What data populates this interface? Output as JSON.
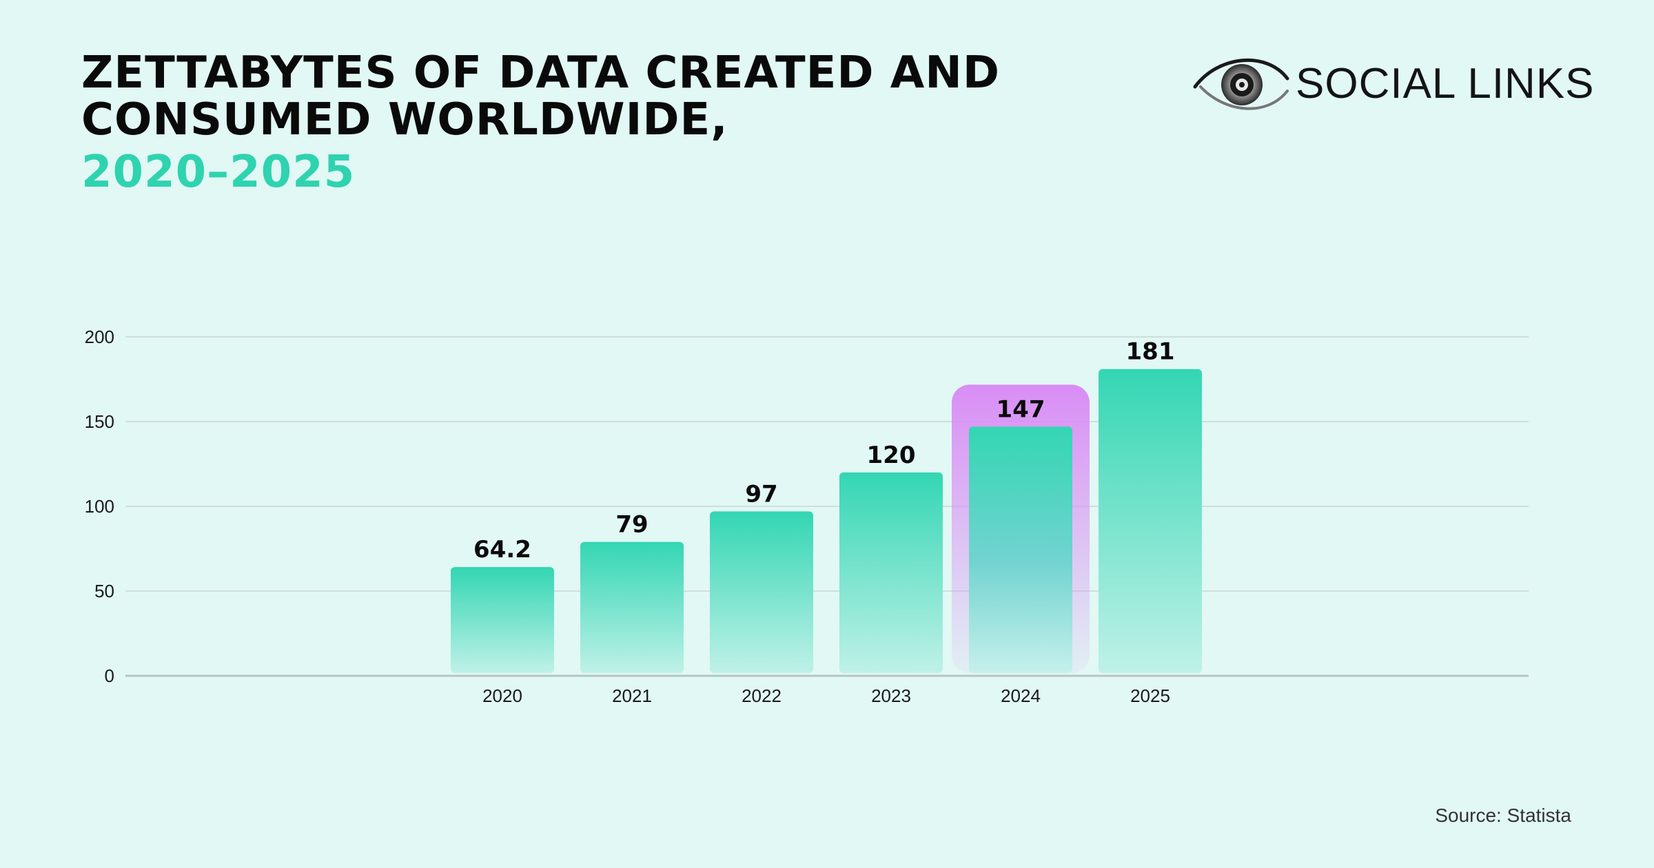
{
  "header": {
    "title_line1": "ZETTABYTES OF DATA CREATED AND",
    "title_line2": "CONSUMED WORLDWIDE,",
    "title_years": "2020–2025"
  },
  "brand": {
    "name": "SOCIAL LINKS",
    "logo_icon": "eye-icon"
  },
  "source": "Source: Statista",
  "colors": {
    "background": "#e1f8f4",
    "bar_top": "#33d6b3",
    "bar_bottom": "#bff1e7",
    "highlight": "#d98df5",
    "accent": "#2fd3b0"
  },
  "chart_data": {
    "type": "bar",
    "title": "Zettabytes of data created and consumed worldwide, 2020–2025",
    "xlabel": "",
    "ylabel": "",
    "categories": [
      "2020",
      "2021",
      "2022",
      "2023",
      "2024",
      "2025"
    ],
    "values": [
      64.2,
      79,
      97,
      120,
      147,
      181
    ],
    "value_labels": [
      "64.2",
      "79",
      "97",
      "120",
      "147",
      "181"
    ],
    "ylim": [
      0,
      200
    ],
    "yticks": [
      0,
      50,
      100,
      150,
      200
    ],
    "grid": true,
    "highlighted_category": "2024"
  }
}
